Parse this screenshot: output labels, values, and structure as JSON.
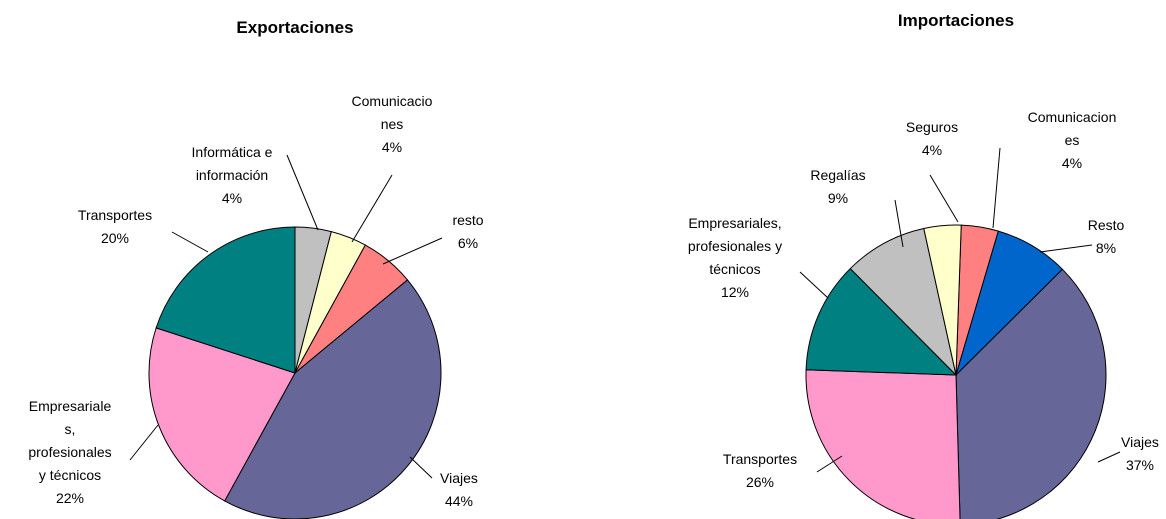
{
  "chart_data": [
    {
      "type": "pie",
      "title": "Exportaciones",
      "categories": [
        "Informática e\ninformación",
        "Comunicacio\nnes",
        "resto",
        "Viajes",
        "Empresariale\ns,\nprofesionales\ny técnicos",
        "Transportes"
      ],
      "values": [
        4,
        4,
        6,
        44,
        22,
        20
      ],
      "value_labels": [
        "4%",
        "4%",
        "6%",
        "44%",
        "22%",
        "20%"
      ],
      "colors": [
        "#c0c0c0",
        "#ffffcc",
        "#ff8080",
        "#666699",
        "#ff99cc",
        "#008080"
      ]
    },
    {
      "type": "pie",
      "title": "Importaciones",
      "categories": [
        "Comunicacion\nes",
        "Resto",
        "Viajes",
        "Transportes",
        "Empresariales,\nprofesionales y\ntécnicos",
        "Regalías",
        "Seguros"
      ],
      "values": [
        4,
        8,
        37,
        26,
        12,
        9,
        4
      ],
      "value_labels": [
        "4%",
        "8%",
        "37%",
        "26%",
        "12%",
        "9%",
        "4%"
      ],
      "colors": [
        "#ff8080",
        "#0066cc",
        "#666699",
        "#ff99cc",
        "#008080",
        "#c0c0c0",
        "#ffffcc"
      ]
    }
  ]
}
